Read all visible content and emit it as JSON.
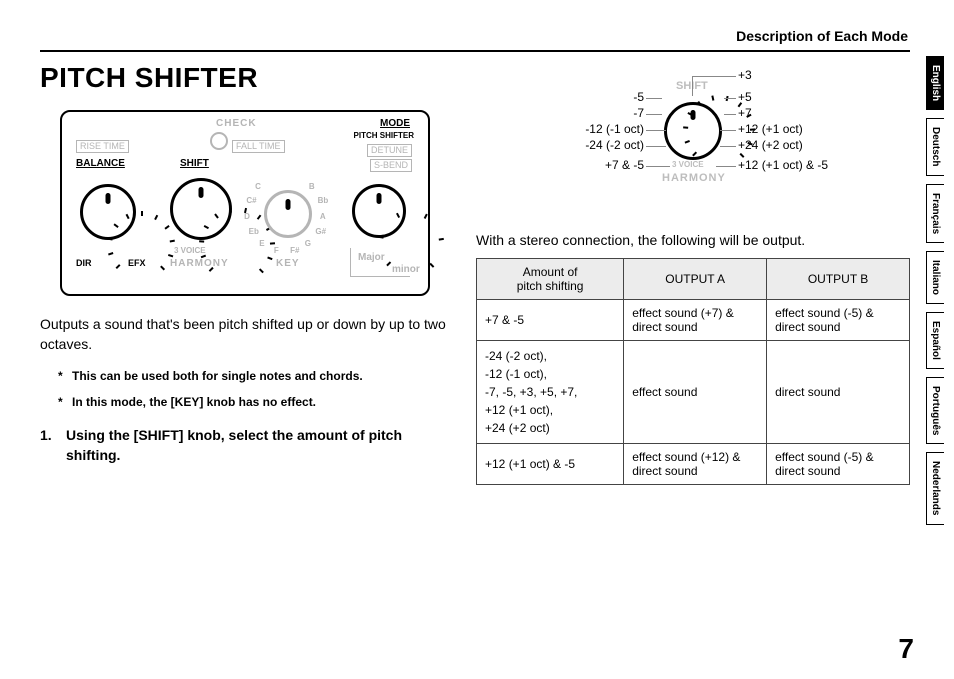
{
  "header": {
    "section_title": "Description of Each Mode"
  },
  "title": "PITCH SHIFTER",
  "panel": {
    "check": "CHECK",
    "mode": "MODE",
    "mode_sub": "PITCH SHIFTER",
    "rise_time": "RISE TIME",
    "fall_time": "FALL TIME",
    "detune": "DETUNE",
    "s_bend": "S-BEND",
    "balance": "BALANCE",
    "shift": "SHIFT",
    "harmony": "HARMONY",
    "three_voice": "3 VOICE",
    "key": "KEY",
    "dir": "DIR",
    "efx": "EFX",
    "major": "Major",
    "minor": "minor",
    "key_ring": [
      "C",
      "C#",
      "D",
      "Eb",
      "E",
      "F",
      "F#",
      "G",
      "G#",
      "A",
      "Bb",
      "B"
    ]
  },
  "shift_dial": {
    "top_label": "SHIFT",
    "bottom_label": "HARMONY",
    "three_voice": "3 VOICE",
    "left": [
      "-5",
      "-7",
      "-12 (-1 oct)",
      "-24 (-2 oct)",
      "+7 & -5"
    ],
    "right": [
      "+3",
      "+5",
      "+7",
      "+12 (+1 oct)",
      "+24 (+2 oct)",
      "+12 (+1 oct) & -5"
    ]
  },
  "body": {
    "intro": "Outputs a sound that's been pitch shifted up or down by up to two octaves.",
    "notes": [
      "This can be used both for single notes and chords.",
      "In this mode, the [KEY] knob has no effect."
    ],
    "step_num": "1.",
    "step_text": "Using the [SHIFT] knob, select the amount of pitch shifting."
  },
  "stereo_intro": "With a stereo connection, the following will be output.",
  "table": {
    "headers": {
      "amt": "Amount of\npitch shifting",
      "a": "OUTPUT A",
      "b": "OUTPUT B"
    },
    "rows": [
      {
        "amt": "+7 & -5",
        "a": "effect sound (+7) & direct sound",
        "b": "effect sound (-5) & direct sound"
      },
      {
        "amt": "-24 (-2 oct),\n-12 (-1 oct),\n-7, -5, +3, +5, +7,\n+12 (+1 oct),\n+24 (+2 oct)",
        "a": "effect sound",
        "b": "direct sound"
      },
      {
        "amt": "+12 (+1 oct) & -5",
        "a": "effect sound (+12) & direct sound",
        "b": "effect sound (-5) & direct sound"
      }
    ]
  },
  "page_number": "7",
  "languages": [
    "English",
    "Deutsch",
    "Français",
    "Italiano",
    "Español",
    "Português",
    "Nederlands"
  ],
  "active_language_index": 0,
  "colors": {
    "grey": "#b5b5b5",
    "line": "#888888",
    "th_bg": "#ececec"
  }
}
